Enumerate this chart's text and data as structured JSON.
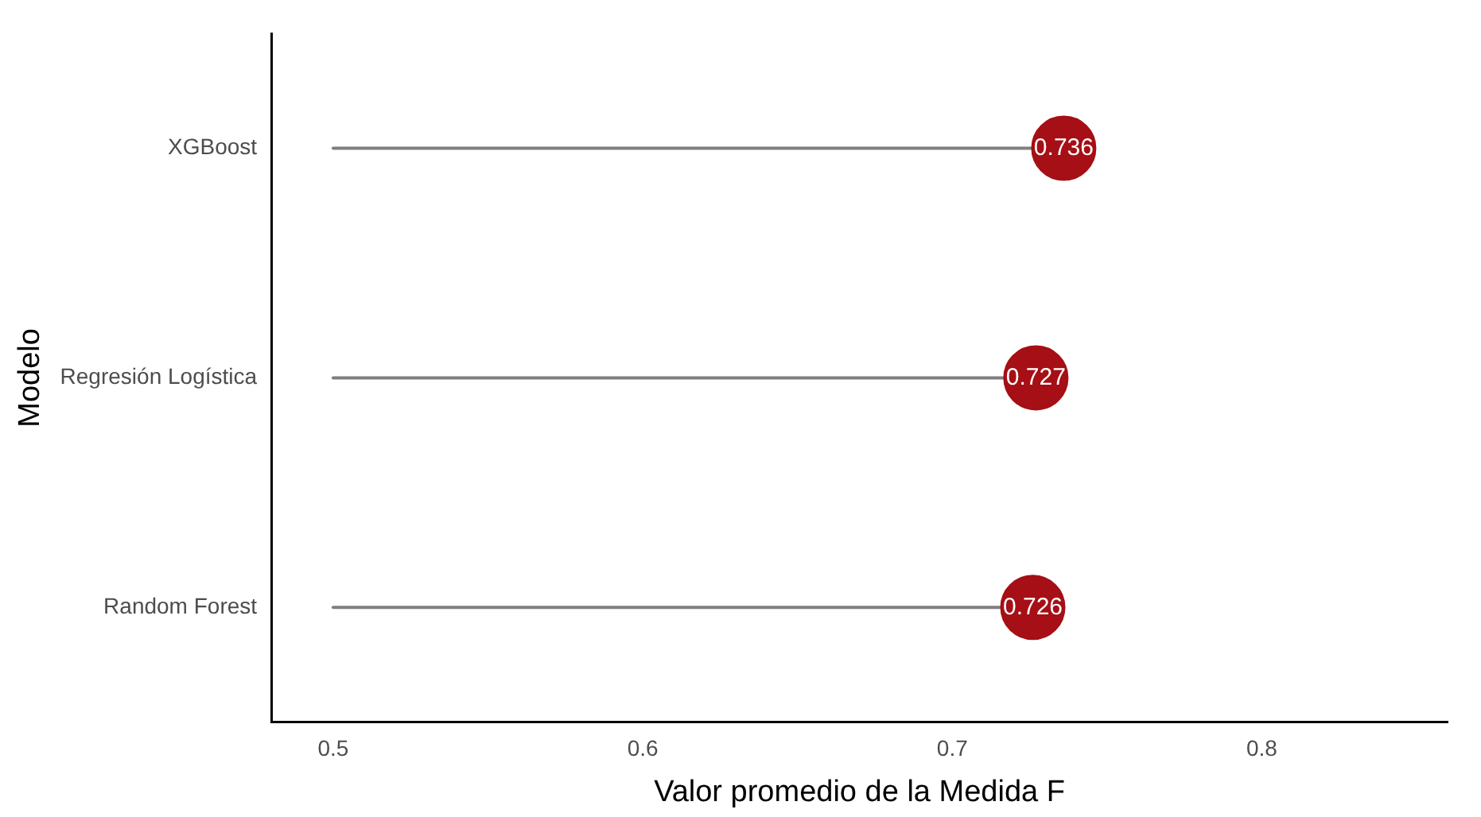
{
  "chart_data": {
    "type": "lollipop",
    "orientation": "horizontal",
    "xlabel": "Valor promedio de la Medida F",
    "ylabel": "Modelo",
    "categories": [
      "XGBoost",
      "Regresión Logística",
      "Random Forest"
    ],
    "values": [
      0.736,
      0.727,
      0.726
    ],
    "color": "#a50f15",
    "xlim": [
      0.48,
      0.86
    ],
    "xticks": [
      0.5,
      0.6,
      0.7,
      0.8
    ],
    "data_labels": true,
    "grid": false,
    "legend": false,
    "marker": "circle"
  }
}
